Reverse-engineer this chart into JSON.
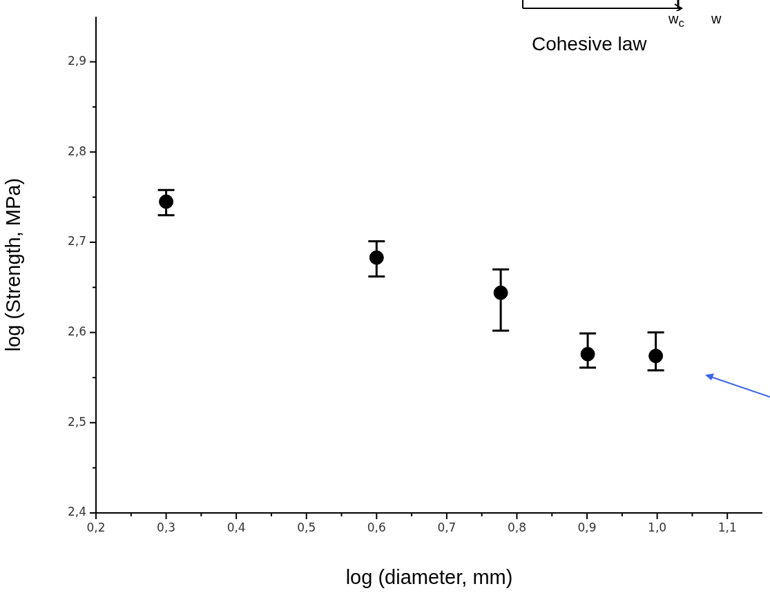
{
  "chart_data": {
    "type": "scatter",
    "xlabel": "log (diameter, mm)",
    "ylabel": "log (Strength, MPa)",
    "x": [
      0.3,
      0.6,
      0.777,
      0.901,
      0.998
    ],
    "series": [
      {
        "color": "#000000",
        "values": [
          2.745,
          2.683,
          2.644,
          2.576,
          2.574
        ],
        "errors": [
          [
            2.73,
            2.758
          ],
          [
            2.662,
            2.701
          ],
          [
            2.602,
            2.67
          ],
          [
            2.561,
            2.599
          ],
          [
            2.558,
            2.6
          ]
        ]
      }
    ],
    "marker": "circle",
    "xlim": [
      0.2,
      1.15
    ],
    "ylim": [
      2.4,
      2.95
    ],
    "xticks": [
      {
        "value": 0.2,
        "label": "0,2"
      },
      {
        "value": 0.25,
        "label": null
      },
      {
        "value": 0.3,
        "label": "0,3"
      },
      {
        "value": 0.35,
        "label": null
      },
      {
        "value": 0.4,
        "label": "0,4"
      },
      {
        "value": 0.45,
        "label": null
      },
      {
        "value": 0.5,
        "label": "0,5"
      },
      {
        "value": 0.55,
        "label": null
      },
      {
        "value": 0.6,
        "label": "0,6"
      },
      {
        "value": 0.65,
        "label": null
      },
      {
        "value": 0.7,
        "label": "0,7"
      },
      {
        "value": 0.75,
        "label": null
      },
      {
        "value": 0.8,
        "label": "0,8"
      },
      {
        "value": 0.85,
        "label": null
      },
      {
        "value": 0.9,
        "label": "0,9"
      },
      {
        "value": 0.95,
        "label": null
      },
      {
        "value": 1.0,
        "label": "1,0"
      },
      {
        "value": 1.05,
        "label": null
      },
      {
        "value": 1.1,
        "label": "1,1"
      }
    ],
    "yticks": [
      {
        "value": 2.4,
        "label": "2,4"
      },
      {
        "value": 2.45,
        "label": null
      },
      {
        "value": 2.5,
        "label": "2,5"
      },
      {
        "value": 2.55,
        "label": null
      },
      {
        "value": 2.6,
        "label": "2,6"
      },
      {
        "value": 2.65,
        "label": null
      },
      {
        "value": 2.7,
        "label": "2,7"
      },
      {
        "value": 2.75,
        "label": null
      },
      {
        "value": 2.8,
        "label": "2,8"
      },
      {
        "value": 2.85,
        "label": null
      },
      {
        "value": 2.9,
        "label": "2,9"
      }
    ],
    "annotations": [
      "Cohesive law",
      "w$_{c}$",
      "w"
    ]
  }
}
